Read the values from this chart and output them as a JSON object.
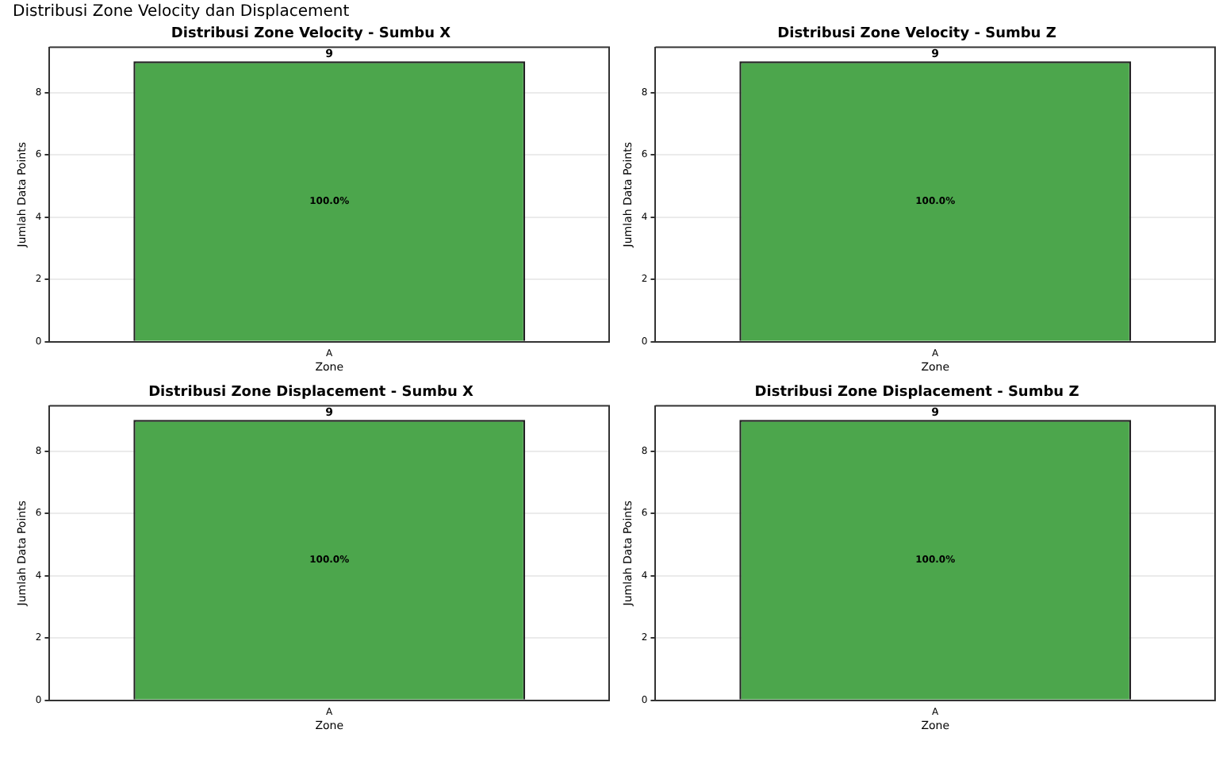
{
  "chart_data": [
    {
      "type": "bar",
      "title": "Distribusi Zone Velocity - Sumbu X",
      "xlabel": "Zone",
      "ylabel": "Jumlah Data Points",
      "categories": [
        "A"
      ],
      "values": [
        9
      ],
      "color": "#4ca64c",
      "ylim": [
        0,
        9.45
      ],
      "yticks": [
        0,
        2,
        4,
        6,
        8
      ],
      "grid": "y",
      "data_labels": true,
      "annotations": [
        "Distribusi Zone Velocity dan Displacement",
        "100.0%"
      ]
    },
    {
      "type": "bar",
      "title": "Distribusi Zone Velocity - Sumbu Z",
      "xlabel": "Zone",
      "ylabel": "Jumlah Data Points",
      "categories": [
        "A"
      ],
      "values": [
        9
      ],
      "color": "#4ca64c",
      "ylim": [
        0,
        9.45
      ],
      "yticks": [
        0,
        2,
        4,
        6,
        8
      ],
      "grid": "y",
      "data_labels": true,
      "annotations": [
        "100.0%"
      ]
    },
    {
      "type": "bar",
      "title": "Distribusi Zone Displacement - Sumbu X",
      "xlabel": "Zone",
      "ylabel": "Jumlah Data Points",
      "categories": [
        "A"
      ],
      "values": [
        9
      ],
      "color": "#4ca64c",
      "ylim": [
        0,
        9.45
      ],
      "yticks": [
        0,
        2,
        4,
        6,
        8
      ],
      "grid": "y",
      "data_labels": true,
      "annotations": [
        "100.0%"
      ]
    },
    {
      "type": "bar",
      "title": "Distribusi Zone Displacement - Sumbu Z",
      "xlabel": "Zone",
      "ylabel": "Jumlah Data Points",
      "categories": [
        "A"
      ],
      "values": [
        9
      ],
      "color": "#4ca64c",
      "ylim": [
        0,
        9.45
      ],
      "yticks": [
        0,
        2,
        4,
        6,
        8
      ],
      "grid": "y",
      "data_labels": true,
      "annotations": [
        "100.0%"
      ]
    }
  ]
}
